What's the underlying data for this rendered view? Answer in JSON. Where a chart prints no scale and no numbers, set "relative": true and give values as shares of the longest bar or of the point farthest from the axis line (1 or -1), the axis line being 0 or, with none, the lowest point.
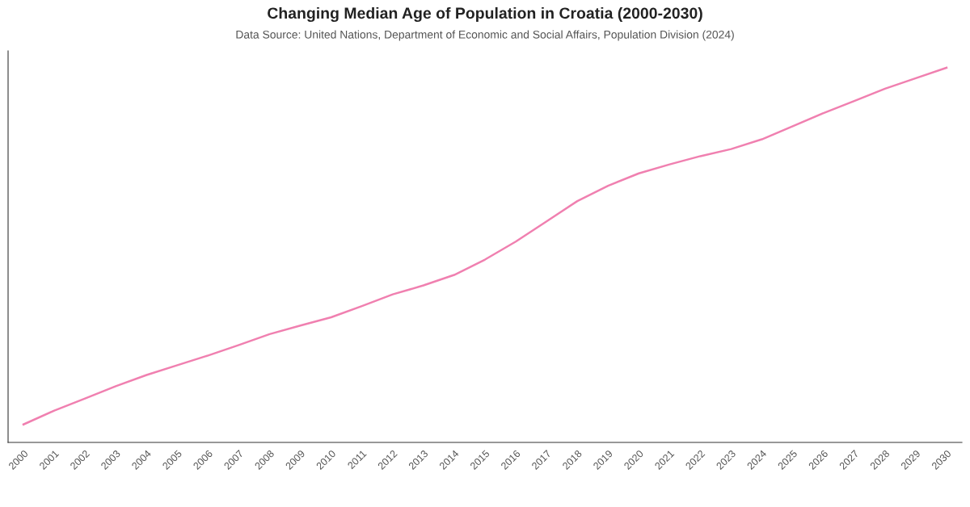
{
  "chart_data": {
    "type": "line",
    "title": "Changing Median Age of Population in Croatia (2000-2030)",
    "subtitle": "Data Source: United Nations, Department of Economic and Social Affairs, Population Division (2024)",
    "relative": true,
    "grid": false,
    "legend": false,
    "marker": "none",
    "line_style": "solid",
    "categories": [
      "2000",
      "2001",
      "2002",
      "2003",
      "2004",
      "2005",
      "2006",
      "2007",
      "2008",
      "2009",
      "2010",
      "2011",
      "2012",
      "2013",
      "2014",
      "2015",
      "2016",
      "2017",
      "2018",
      "2019",
      "2020",
      "2021",
      "2022",
      "2023",
      "2024",
      "2025",
      "2026",
      "2027",
      "2028",
      "2029",
      "2030"
    ],
    "series": [
      {
        "color": "#f080b0",
        "values": [
          0.048,
          0.085,
          0.117,
          0.15,
          0.18,
          0.206,
          0.232,
          0.26,
          0.289,
          0.312,
          0.334,
          0.364,
          0.395,
          0.419,
          0.447,
          0.488,
          0.536,
          0.59,
          0.644,
          0.685,
          0.718,
          0.742,
          0.764,
          0.783,
          0.809,
          0.844,
          0.879,
          0.911,
          0.944,
          0.972,
          1.0
        ]
      }
    ]
  }
}
